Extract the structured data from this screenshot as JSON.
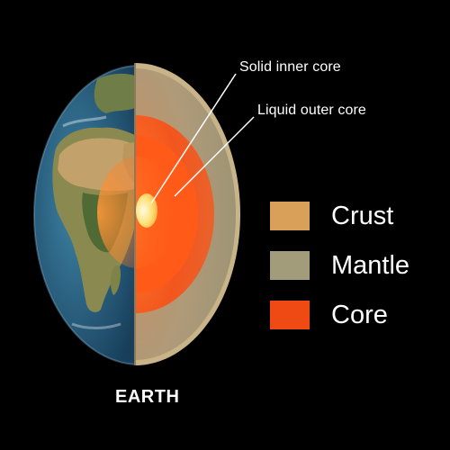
{
  "callouts": {
    "inner_core": "Solid inner core",
    "outer_core": "Liquid outer core"
  },
  "earth_label": "EARTH",
  "legend": [
    {
      "label": "Crust",
      "color": "#d9a05a"
    },
    {
      "label": "Mantle",
      "color": "#a39c7a"
    },
    {
      "label": "Core",
      "color": "#f04a14"
    }
  ],
  "colors": {
    "background": "#000000",
    "ocean": "#2b6a8e",
    "land": "#7a8a4a",
    "desert": "#c2a26a",
    "crust_rim": "#c9b489",
    "mantle": "#a39c7a",
    "outer_core": "#f2561e",
    "inner_core": "#fff2a8"
  }
}
